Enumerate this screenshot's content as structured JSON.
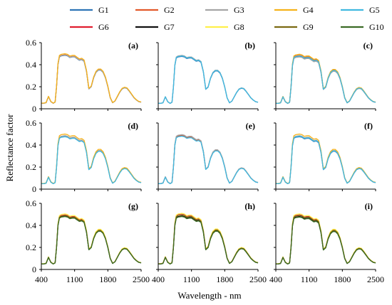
{
  "legend": [
    {
      "name": "G1",
      "color": "#2e75b6"
    },
    {
      "name": "G2",
      "color": "#e2592a"
    },
    {
      "name": "G3",
      "color": "#a5a5a5"
    },
    {
      "name": "G4",
      "color": "#f5b21a"
    },
    {
      "name": "G5",
      "color": "#40b9e0"
    },
    {
      "name": "G6",
      "color": "#e01e2f"
    },
    {
      "name": "G7",
      "color": "#111111"
    },
    {
      "name": "G8",
      "color": "#fff04a"
    },
    {
      "name": "G9",
      "color": "#7b6a12"
    },
    {
      "name": "G10",
      "color": "#3b6b25"
    }
  ],
  "axes": {
    "xlabel": "Wavelength - nm",
    "ylabel": "Reflectance factor",
    "xticks": [
      "400",
      "1100",
      "1800",
      "2500"
    ],
    "yticks": [
      "0",
      "0.2",
      "0.4",
      "0.6"
    ]
  },
  "chart_data": {
    "type": "line",
    "layout": "3x3 small multiples",
    "xlabel": "Wavelength - nm",
    "ylabel": "Reflectance factor",
    "xlim": [
      400,
      2500
    ],
    "ylim": [
      0,
      0.6
    ],
    "grid": false,
    "legend_position": "top",
    "base_curve": {
      "x": [
        400,
        450,
        500,
        550,
        600,
        650,
        690,
        720,
        750,
        780,
        820,
        900,
        950,
        1000,
        1050,
        1100,
        1150,
        1200,
        1250,
        1300,
        1350,
        1400,
        1450,
        1500,
        1550,
        1600,
        1650,
        1700,
        1750,
        1800,
        1850,
        1900,
        1950,
        2000,
        2050,
        2100,
        2150,
        2200,
        2250,
        2300,
        2350,
        2400,
        2450,
        2500
      ],
      "y": [
        0.05,
        0.05,
        0.055,
        0.11,
        0.065,
        0.05,
        0.06,
        0.2,
        0.4,
        0.47,
        0.48,
        0.485,
        0.48,
        0.465,
        0.47,
        0.47,
        0.455,
        0.44,
        0.445,
        0.43,
        0.34,
        0.18,
        0.2,
        0.28,
        0.33,
        0.35,
        0.35,
        0.33,
        0.28,
        0.2,
        0.1,
        0.055,
        0.07,
        0.11,
        0.15,
        0.18,
        0.19,
        0.185,
        0.16,
        0.13,
        0.1,
        0.08,
        0.065,
        0.06
      ]
    },
    "panels": [
      {
        "label": "(a)",
        "series": [
          "G1",
          "G2",
          "G3",
          "G4"
        ],
        "scales": [
          1.0,
          1.01,
          1.005,
          1.03
        ]
      },
      {
        "label": "(b)",
        "series": [
          "G1",
          "G3",
          "G5"
        ],
        "scales": [
          0.98,
          1.0,
          0.99
        ]
      },
      {
        "label": "(c)",
        "series": [
          "G1",
          "G2",
          "G3",
          "G4",
          "G5"
        ],
        "scales": [
          0.98,
          1.0,
          0.97,
          1.02,
          0.99
        ]
      },
      {
        "label": "(d)",
        "series": [
          "G1",
          "G3",
          "G4",
          "G5"
        ],
        "scales": [
          0.99,
          1.0,
          1.03,
          0.98
        ]
      },
      {
        "label": "(e)",
        "series": [
          "G1",
          "G2",
          "G3",
          "G5"
        ],
        "scales": [
          1.0,
          1.01,
          1.02,
          0.99
        ]
      },
      {
        "label": "(f)",
        "series": [
          "G1",
          "G3",
          "G4",
          "G5"
        ],
        "scales": [
          0.98,
          1.0,
          1.03,
          0.99
        ]
      },
      {
        "label": "(g)",
        "series": [
          "G6",
          "G7",
          "G8",
          "G9",
          "G10"
        ],
        "scales": [
          1.02,
          1.0,
          1.04,
          1.01,
          0.99
        ]
      },
      {
        "label": "(h)",
        "series": [
          "G6",
          "G7",
          "G8",
          "G9",
          "G10"
        ],
        "scales": [
          1.04,
          1.0,
          1.05,
          1.02,
          0.99
        ]
      },
      {
        "label": "(i)",
        "series": [
          "G6",
          "G7",
          "G8",
          "G9",
          "G10"
        ],
        "scales": [
          1.02,
          0.99,
          1.04,
          1.01,
          0.98
        ]
      }
    ]
  }
}
